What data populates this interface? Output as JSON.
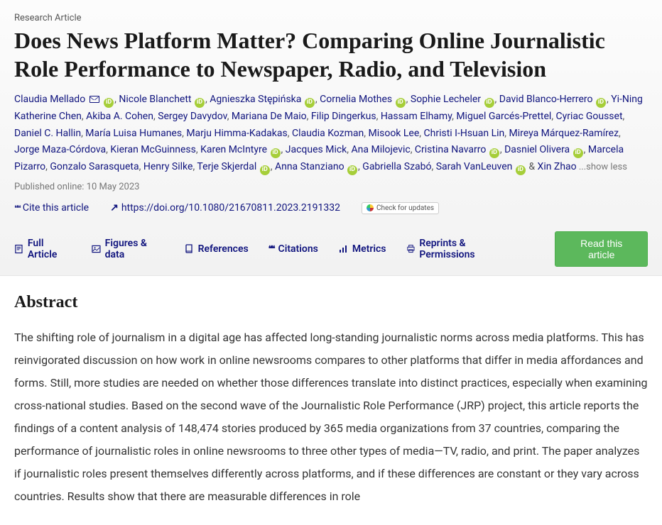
{
  "article_type": "Research Article",
  "title": "Does News Platform Matter? Comparing Online Journalistic Role Performance to Newspaper, Radio, and Television",
  "authors": [
    {
      "name": "Claudia Mellado",
      "mail": true,
      "orcid": true
    },
    {
      "name": "Nicole Blanchett",
      "orcid": true
    },
    {
      "name": "Agnieszka Stępińska",
      "orcid": true
    },
    {
      "name": "Cornelia Mothes",
      "orcid": true
    },
    {
      "name": "Sophie Lecheler",
      "orcid": true
    },
    {
      "name": "David Blanco-Herrero",
      "orcid": true
    },
    {
      "name": "Yi-Ning Katherine Chen"
    },
    {
      "name": "Akiba A. Cohen"
    },
    {
      "name": "Sergey Davydov"
    },
    {
      "name": "Mariana De Maio"
    },
    {
      "name": "Filip Dingerkus"
    },
    {
      "name": "Hassam Elhamy"
    },
    {
      "name": "Miguel Garcés-Prettel"
    },
    {
      "name": "Cyriac Gousset"
    },
    {
      "name": "Daniel C. Hallin"
    },
    {
      "name": "María Luisa Humanes"
    },
    {
      "name": "Marju Himma-Kadakas"
    },
    {
      "name": "Claudia Kozman"
    },
    {
      "name": "Misook Lee"
    },
    {
      "name": "Christi I-Hsuan Lin"
    },
    {
      "name": "Mireya Márquez-Ramírez"
    },
    {
      "name": "Jorge Maza-Córdova"
    },
    {
      "name": "Kieran McGuinness"
    },
    {
      "name": "Karen McIntyre",
      "orcid": true
    },
    {
      "name": "Jacques Mick"
    },
    {
      "name": "Ana Milojevic"
    },
    {
      "name": "Cristina Navarro",
      "orcid": true
    },
    {
      "name": "Dasniel Olivera",
      "orcid": true
    },
    {
      "name": "Marcela Pizarro"
    },
    {
      "name": "Gonzalo Sarasqueta"
    },
    {
      "name": "Henry Silke"
    },
    {
      "name": "Terje Skjerdal",
      "orcid": true
    },
    {
      "name": "Anna Stanziano",
      "orcid": true
    },
    {
      "name": "Gabriella Szabó"
    },
    {
      "name": "Sarah VanLeuven",
      "orcid": true
    },
    {
      "name": "Xin Zhao",
      "amp": true
    }
  ],
  "show_less": "...show less",
  "published_label": "Published online: 10 May 2023",
  "cite_label": "Cite this article",
  "doi_url": "https://doi.org/10.1080/21670811.2023.2191332",
  "crossmark_label": "Check for updates",
  "tabs": {
    "full": "Full Article",
    "figures": "Figures & data",
    "refs": "References",
    "citations": "Citations",
    "metrics": "Metrics",
    "reprints": "Reprints & Permissions"
  },
  "read_btn": "Read this article",
  "abstract_heading": "Abstract",
  "abstract_text": "The shifting role of journalism in a digital age has affected long-standing journalistic norms across media platforms. This has reinvigorated discussion on how work in online newsrooms compares to other platforms that differ in media affordances and forms. Still, more studies are needed on whether those differences translate into distinct practices, especially when examining cross-national studies. Based on the second wave of the Journalistic Role Performance (JRP) project, this article reports the findings of a content analysis of 148,474 stories produced by 365 media organizations from 37 countries, comparing the performance of journalistic roles in online newsrooms to three other types of media—TV, radio, and print. The paper analyzes if journalistic roles present themselves differently across platforms, and if these differences are constant or they vary across countries. Results show that there are measurable differences in role",
  "colors": {
    "link": "#10147e",
    "orcid": "#a6ce39",
    "read_btn_bg": "#5cb85c",
    "header_bg_top": "#fcfcfc",
    "header_bg_bottom": "#f2f2f2"
  }
}
